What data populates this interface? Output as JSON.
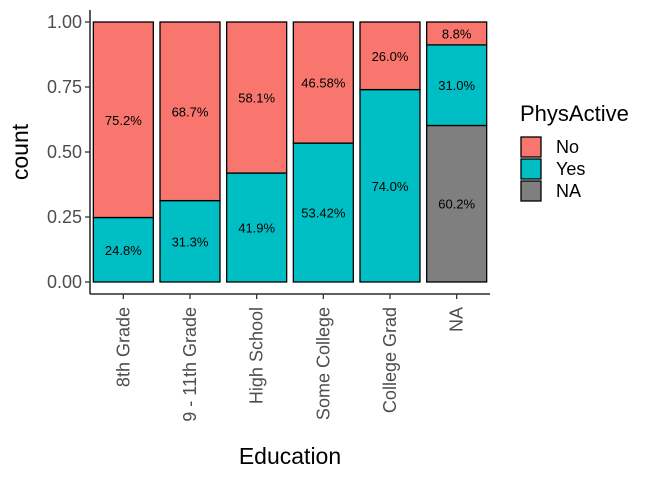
{
  "chart_data": {
    "type": "bar",
    "stacked": "fill",
    "xlabel": "Education",
    "ylabel": "count",
    "ylim": [
      0,
      1
    ],
    "yticks": [
      "0.00",
      "0.25",
      "0.50",
      "0.75",
      "1.00"
    ],
    "categories": [
      "8th Grade",
      "9 - 11th Grade",
      "High School",
      "Some College",
      "College Grad",
      "NA"
    ],
    "legend": {
      "title": "PhysActive",
      "position": "right"
    },
    "series": [
      {
        "name": "No",
        "color": "#F8766D",
        "values": [
          0.752,
          0.687,
          0.581,
          0.4658,
          0.26,
          0.088
        ],
        "labels": [
          "75.2%",
          "68.7%",
          "58.1%",
          "46.58%",
          "26.0%",
          "8.8%"
        ]
      },
      {
        "name": "Yes",
        "color": "#00BFC4",
        "values": [
          0.248,
          0.313,
          0.419,
          0.5342,
          0.74,
          0.31
        ],
        "labels": [
          "24.8%",
          "31.3%",
          "41.9%",
          "53.42%",
          "74.0%",
          "31.0%"
        ]
      },
      {
        "name": "NA",
        "color": "#7F7F7F",
        "values": [
          0,
          0,
          0,
          0,
          0,
          0.602
        ],
        "labels": [
          "",
          "",
          "",
          "",
          "",
          "60.2%"
        ]
      }
    ],
    "grid": false
  }
}
